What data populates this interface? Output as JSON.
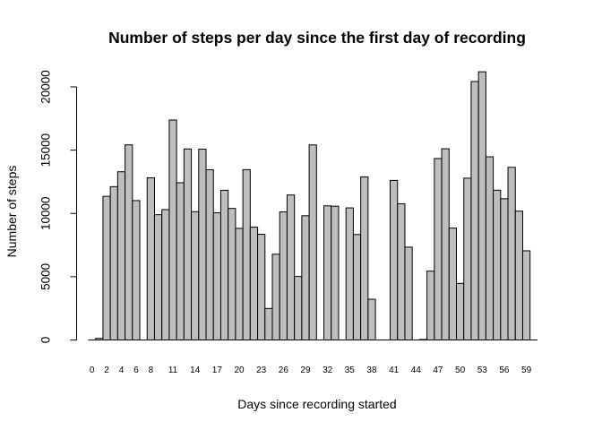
{
  "chart_data": {
    "type": "bar",
    "title": "Number of steps per day since the first day of recording",
    "xlabel": "Days since recording started",
    "ylabel": "Number of steps",
    "ylim": [
      0,
      21500
    ],
    "yticks": [
      0,
      5000,
      10000,
      15000,
      20000
    ],
    "grid": false,
    "bar_color": "#bebebe",
    "edge_color": "#000000",
    "categories": [
      "0",
      "1",
      "2",
      "3",
      "4",
      "5",
      "6",
      "7",
      "8",
      "9",
      "10",
      "11",
      "12",
      "13",
      "14",
      "15",
      "16",
      "17",
      "18",
      "19",
      "20",
      "21",
      "22",
      "23",
      "24",
      "25",
      "26",
      "27",
      "28",
      "29",
      "30",
      "31",
      "32",
      "33",
      "34",
      "35",
      "36",
      "37",
      "38",
      "39",
      "40",
      "41",
      "42",
      "43",
      "44",
      "45",
      "46",
      "47",
      "48",
      "49",
      "50",
      "51",
      "52",
      "53",
      "54",
      "55",
      "56",
      "57",
      "58",
      "59",
      "60"
    ],
    "tick_labels": [
      "0",
      "2",
      "4",
      "6",
      "8",
      "11",
      "14",
      "17",
      "20",
      "23",
      "26",
      "29",
      "32",
      "35",
      "38",
      "41",
      "44",
      "47",
      "50",
      "53",
      "56",
      "59"
    ],
    "values": [
      0,
      126,
      11352,
      12116,
      13294,
      15420,
      11015,
      0,
      12811,
      9900,
      10304,
      17382,
      12426,
      15098,
      10139,
      15084,
      13452,
      10056,
      11829,
      10395,
      8821,
      13460,
      8918,
      8355,
      2492,
      6778,
      10119,
      11458,
      5018,
      9819,
      15414,
      0,
      10600,
      10571,
      0,
      10439,
      8334,
      12883,
      3219,
      0,
      0,
      12608,
      10765,
      7336,
      0,
      41,
      5441,
      14339,
      15110,
      8841,
      4472,
      12787,
      20427,
      21194,
      14478,
      11834,
      11162,
      13646,
      10183,
      7047,
      0
    ]
  }
}
